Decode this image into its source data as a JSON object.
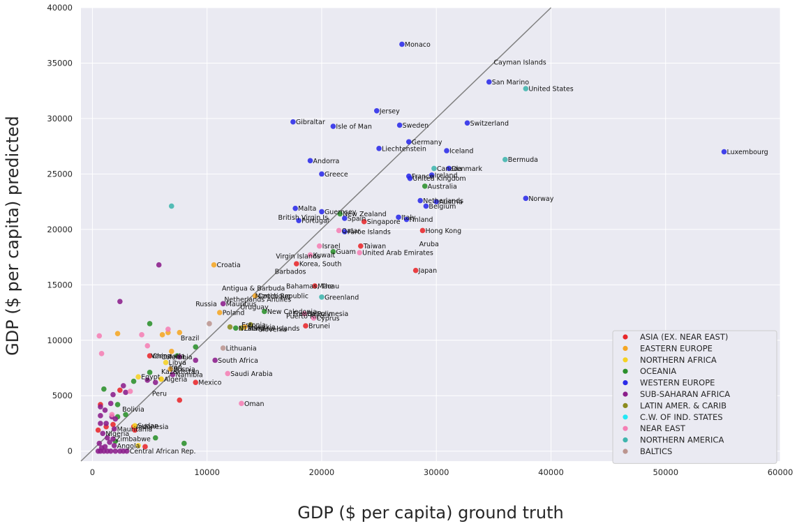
{
  "chart_data": {
    "type": "scatter",
    "xlabel": "GDP ($ per capita) ground truth",
    "ylabel": "GDP ($ per capita) predicted",
    "xlim": [
      -1000,
      60000
    ],
    "ylim": [
      -900,
      40000
    ],
    "xticks": [
      0,
      10000,
      20000,
      30000,
      40000,
      50000,
      60000
    ],
    "yticks": [
      0,
      5000,
      10000,
      15000,
      20000,
      25000,
      30000,
      35000,
      40000
    ],
    "grid": true,
    "background": "#eaeaf2",
    "reference_line": {
      "from": [
        -1000,
        -900
      ],
      "to": [
        40000,
        40000
      ],
      "color": "#808080"
    },
    "legend_position": "bottom-right",
    "series": [
      {
        "name": "ASIA (EX. NEAR EAST)",
        "color": "#e8272a",
        "points": [
          {
            "x": 23700,
            "y": 20700,
            "label": "Singapore"
          },
          {
            "x": 28800,
            "y": 19900,
            "label": "Hong Kong"
          },
          {
            "x": 23400,
            "y": 18500,
            "label": "Taiwan"
          },
          {
            "x": 28200,
            "y": 16300,
            "label": "Japan"
          },
          {
            "x": 17800,
            "y": 16900,
            "label": "Korea, South"
          },
          {
            "x": 19400,
            "y": 14900,
            "label": "Macau"
          },
          {
            "x": 18600,
            "y": 11300,
            "label": "Brunei"
          },
          {
            "x": 5000,
            "y": 8600,
            "label": "China"
          },
          {
            "x": 9000,
            "y": 6200,
            "label": "Mexico"
          },
          {
            "x": 7600,
            "y": 4600,
            "label": ""
          },
          {
            "x": 3600,
            "y": 2200,
            "label": "Indonesia"
          },
          {
            "x": 2400,
            "y": 5500,
            "label": ""
          },
          {
            "x": 3700,
            "y": 1900,
            "label": ""
          },
          {
            "x": 1200,
            "y": 2200,
            "label": ""
          },
          {
            "x": 500,
            "y": 1900,
            "label": ""
          },
          {
            "x": 4600,
            "y": 400,
            "label": ""
          },
          {
            "x": 700,
            "y": 4200,
            "label": ""
          },
          {
            "x": 1800,
            "y": 2400,
            "label": ""
          }
        ]
      },
      {
        "name": "EASTERN EUROPE",
        "color": "#f5a623",
        "points": [
          {
            "x": 10600,
            "y": 16800,
            "label": "Croatia"
          },
          {
            "x": 14200,
            "y": 14000,
            "label": "Czech Republic"
          },
          {
            "x": 11100,
            "y": 12500,
            "label": "Poland"
          },
          {
            "x": 13300,
            "y": 11200,
            "label": "Slovakia"
          },
          {
            "x": 6900,
            "y": 9000,
            "label": ""
          },
          {
            "x": 7600,
            "y": 10700,
            "label": ""
          },
          {
            "x": 6100,
            "y": 10500,
            "label": ""
          },
          {
            "x": 6600,
            "y": 10700,
            "label": ""
          },
          {
            "x": 2200,
            "y": 10600,
            "label": ""
          },
          {
            "x": 6000,
            "y": 6500,
            "label": ""
          },
          {
            "x": 6800,
            "y": 7400,
            "label": "Bosnia"
          }
        ]
      },
      {
        "name": "NORTHERN AFRICA",
        "color": "#f5d223",
        "points": [
          {
            "x": 6400,
            "y": 8000,
            "label": "Libya"
          },
          {
            "x": 6000,
            "y": 6500,
            "label": "Algeria"
          },
          {
            "x": 4000,
            "y": 6700,
            "label": "Egypt"
          },
          {
            "x": 3700,
            "y": 2300,
            "label": "Sudan"
          },
          {
            "x": 4000,
            "y": 500,
            "label": ""
          }
        ]
      },
      {
        "name": "OCEANIA",
        "color": "#2a8f2a",
        "points": [
          {
            "x": 21600,
            "y": 21400,
            "label": "New Zealand"
          },
          {
            "x": 29000,
            "y": 23900,
            "label": "Australia"
          },
          {
            "x": 21000,
            "y": 18000,
            "label": "Guam"
          },
          {
            "x": 15000,
            "y": 12600,
            "label": "New Caledonia"
          },
          {
            "x": 12500,
            "y": 11100,
            "label": "N. Mariana Islands"
          },
          {
            "x": 9000,
            "y": 9400,
            "label": ""
          },
          {
            "x": 5000,
            "y": 11500,
            "label": ""
          },
          {
            "x": 7400,
            "y": 8600,
            "label": ""
          },
          {
            "x": 5000,
            "y": 7100,
            "label": ""
          },
          {
            "x": 3600,
            "y": 6300,
            "label": ""
          },
          {
            "x": 1000,
            "y": 5600,
            "label": ""
          },
          {
            "x": 2200,
            "y": 4200,
            "label": ""
          },
          {
            "x": 2900,
            "y": 3300,
            "label": ""
          },
          {
            "x": 2200,
            "y": 3100,
            "label": ""
          },
          {
            "x": 5500,
            "y": 1200,
            "label": ""
          },
          {
            "x": 8000,
            "y": 700,
            "label": ""
          },
          {
            "x": 2000,
            "y": 900,
            "label": ""
          }
        ]
      },
      {
        "name": "WESTERN EUROPE",
        "color": "#2a2ae8",
        "points": [
          {
            "x": 27000,
            "y": 36700,
            "label": "Monaco"
          },
          {
            "x": 34600,
            "y": 33300,
            "label": "San Marino"
          },
          {
            "x": 24800,
            "y": 30700,
            "label": "Jersey"
          },
          {
            "x": 17500,
            "y": 29700,
            "label": "Gibraltar"
          },
          {
            "x": 21000,
            "y": 29300,
            "label": "Isle of Man"
          },
          {
            "x": 26800,
            "y": 29400,
            "label": "Sweden"
          },
          {
            "x": 32700,
            "y": 29600,
            "label": "Switzerland"
          },
          {
            "x": 27600,
            "y": 27900,
            "label": "Germany"
          },
          {
            "x": 25000,
            "y": 27300,
            "label": "Liechtenstein"
          },
          {
            "x": 30900,
            "y": 27100,
            "label": "Iceland"
          },
          {
            "x": 55100,
            "y": 27000,
            "label": "Luxembourg"
          },
          {
            "x": 19000,
            "y": 26200,
            "label": "Andorra"
          },
          {
            "x": 20000,
            "y": 25000,
            "label": "Greece"
          },
          {
            "x": 31100,
            "y": 25500,
            "label": "Denmark"
          },
          {
            "x": 27600,
            "y": 24800,
            "label": "France"
          },
          {
            "x": 29600,
            "y": 24900,
            "label": "Ireland"
          },
          {
            "x": 27700,
            "y": 24600,
            "label": "United Kingdom"
          },
          {
            "x": 37800,
            "y": 22800,
            "label": "Norway"
          },
          {
            "x": 28600,
            "y": 22600,
            "label": "Netherlands"
          },
          {
            "x": 30000,
            "y": 22500,
            "label": "Austria"
          },
          {
            "x": 29100,
            "y": 22100,
            "label": "Belgium"
          },
          {
            "x": 17700,
            "y": 21900,
            "label": "Malta"
          },
          {
            "x": 20000,
            "y": 21600,
            "label": "Guernsey"
          },
          {
            "x": 22000,
            "y": 21000,
            "label": "Spain"
          },
          {
            "x": 26700,
            "y": 21100,
            "label": "Italy"
          },
          {
            "x": 27400,
            "y": 20900,
            "label": "Finland"
          },
          {
            "x": 18000,
            "y": 20800,
            "label": "Portugal"
          },
          {
            "x": 22000,
            "y": 19800,
            "label": "Faroe Islands"
          }
        ]
      },
      {
        "name": "SUB-SAHARAN AFRICA",
        "color": "#8b1e8b",
        "points": [
          {
            "x": 5800,
            "y": 16800,
            "label": ""
          },
          {
            "x": 2400,
            "y": 13500,
            "label": ""
          },
          {
            "x": 11400,
            "y": 13300,
            "label": "Mauritius"
          },
          {
            "x": 10700,
            "y": 8200,
            "label": "South Africa"
          },
          {
            "x": 7600,
            "y": 8500,
            "label": ""
          },
          {
            "x": 9000,
            "y": 8200,
            "label": ""
          },
          {
            "x": 7000,
            "y": 6900,
            "label": "Namibia"
          },
          {
            "x": 4800,
            "y": 6400,
            "label": ""
          },
          {
            "x": 5500,
            "y": 6200,
            "label": ""
          },
          {
            "x": 2700,
            "y": 5900,
            "label": ""
          },
          {
            "x": 2900,
            "y": 5300,
            "label": ""
          },
          {
            "x": 1800,
            "y": 5100,
            "label": ""
          },
          {
            "x": 700,
            "y": 4000,
            "label": ""
          },
          {
            "x": 1100,
            "y": 3700,
            "label": ""
          },
          {
            "x": 1600,
            "y": 4300,
            "label": ""
          },
          {
            "x": 1700,
            "y": 3100,
            "label": ""
          },
          {
            "x": 700,
            "y": 3200,
            "label": ""
          },
          {
            "x": 2000,
            "y": 2900,
            "label": ""
          },
          {
            "x": 700,
            "y": 2500,
            "label": ""
          },
          {
            "x": 1200,
            "y": 2500,
            "label": ""
          },
          {
            "x": 1900,
            "y": 2000,
            "label": "Mauritania"
          },
          {
            "x": 900,
            "y": 1600,
            "label": "Nigeria"
          },
          {
            "x": 1300,
            "y": 1200,
            "label": ""
          },
          {
            "x": 1800,
            "y": 1100,
            "label": "Zimbabwe"
          },
          {
            "x": 1500,
            "y": 800,
            "label": ""
          },
          {
            "x": 1900,
            "y": 500,
            "label": "Angola"
          },
          {
            "x": 600,
            "y": 700,
            "label": ""
          },
          {
            "x": 800,
            "y": 300,
            "label": ""
          },
          {
            "x": 1100,
            "y": 400,
            "label": ""
          },
          {
            "x": 500,
            "y": 0,
            "label": ""
          },
          {
            "x": 700,
            "y": 0,
            "label": ""
          },
          {
            "x": 1000,
            "y": 0,
            "label": ""
          },
          {
            "x": 1300,
            "y": 0,
            "label": ""
          },
          {
            "x": 1600,
            "y": 0,
            "label": ""
          },
          {
            "x": 2000,
            "y": 0,
            "label": ""
          },
          {
            "x": 2400,
            "y": 0,
            "label": ""
          },
          {
            "x": 2700,
            "y": 0,
            "label": ""
          },
          {
            "x": 3000,
            "y": 0,
            "label": "Central African Rep."
          }
        ]
      },
      {
        "name": "LATIN AMER. & CARIB",
        "color": "#8b8b1e",
        "points": [
          {
            "x": 13000,
            "y": 11100,
            "label": "Latvia"
          },
          {
            "x": 12000,
            "y": 11200,
            "label": ""
          },
          {
            "x": 13800,
            "y": 11400,
            "label": ""
          }
        ]
      },
      {
        "name": "C.W. OF IND. STATES",
        "color": "#23e8f5",
        "points": []
      },
      {
        "name": "NEAR EAST",
        "color": "#f57fb4",
        "points": [
          {
            "x": 19800,
            "y": 18500,
            "label": "Israel"
          },
          {
            "x": 23300,
            "y": 17900,
            "label": "United Arab Emirates"
          },
          {
            "x": 21500,
            "y": 19900,
            "label": "Qatar"
          },
          {
            "x": 19000,
            "y": 17700,
            "label": "Kuwait"
          },
          {
            "x": 19300,
            "y": 12000,
            "label": "Cyprus"
          },
          {
            "x": 18500,
            "y": 12400,
            "label": "Bahrain"
          },
          {
            "x": 11800,
            "y": 7000,
            "label": "Saudi Arabia"
          },
          {
            "x": 13000,
            "y": 4300,
            "label": "Oman"
          },
          {
            "x": 600,
            "y": 10400,
            "label": ""
          },
          {
            "x": 800,
            "y": 8800,
            "label": ""
          },
          {
            "x": 4800,
            "y": 9500,
            "label": ""
          },
          {
            "x": 4300,
            "y": 10500,
            "label": ""
          },
          {
            "x": 6600,
            "y": 11000,
            "label": ""
          },
          {
            "x": 3300,
            "y": 5400,
            "label": ""
          },
          {
            "x": 1700,
            "y": 3300,
            "label": ""
          }
        ]
      },
      {
        "name": "NORTHERN AMERICA",
        "color": "#3fb5ad",
        "points": [
          {
            "x": 37800,
            "y": 32700,
            "label": "United States"
          },
          {
            "x": 36000,
            "y": 26300,
            "label": "Bermuda"
          },
          {
            "x": 29800,
            "y": 25500,
            "label": "Canada"
          },
          {
            "x": 20000,
            "y": 13900,
            "label": "Greenland"
          },
          {
            "x": 6900,
            "y": 22100,
            "label": ""
          }
        ]
      },
      {
        "name": "BALTICS",
        "color": "#bc958f",
        "points": [
          {
            "x": 11400,
            "y": 9300,
            "label": "Lithuania"
          },
          {
            "x": 10200,
            "y": 11500,
            "label": ""
          }
        ]
      }
    ],
    "annotations": [
      {
        "x": 35000,
        "y": 35100,
        "text": "Cayman Islands"
      },
      {
        "x": 28500,
        "y": 18700,
        "text": "Aruba"
      },
      {
        "x": 16200,
        "y": 21100,
        "text": "British Virgin Is."
      },
      {
        "x": 16000,
        "y": 17600,
        "text": "Virgin Islands"
      },
      {
        "x": 15900,
        "y": 16200,
        "text": "Barbados"
      },
      {
        "x": 16900,
        "y": 14900,
        "text": "Bahamas, The"
      },
      {
        "x": 11300,
        "y": 14700,
        "text": "Antigua & Barbuda"
      },
      {
        "x": 14200,
        "y": 14000,
        "text": "Martinique"
      },
      {
        "x": 11500,
        "y": 13700,
        "text": "Netherlands Antilles"
      },
      {
        "x": 9000,
        "y": 13300,
        "text": "Russia"
      },
      {
        "x": 12900,
        "y": 13000,
        "text": "Uruguay"
      },
      {
        "x": 17500,
        "y": 12400,
        "text": "French Polynesia"
      },
      {
        "x": 16900,
        "y": 12200,
        "text": "Puerto Rico"
      },
      {
        "x": 14500,
        "y": 11000,
        "text": "Slovenia"
      },
      {
        "x": 13000,
        "y": 11400,
        "text": "Estonia"
      },
      {
        "x": 7700,
        "y": 10200,
        "text": "Brazil"
      },
      {
        "x": 5100,
        "y": 8600,
        "text": "Venezuela"
      },
      {
        "x": 6000,
        "y": 8500,
        "text": "Colombia"
      },
      {
        "x": 6700,
        "y": 7600,
        "text": "Iran"
      },
      {
        "x": 6000,
        "y": 7200,
        "text": "Kazakhstan"
      },
      {
        "x": 5200,
        "y": 5200,
        "text": "Peru"
      },
      {
        "x": 2600,
        "y": 3800,
        "text": "Bolivia"
      }
    ]
  }
}
